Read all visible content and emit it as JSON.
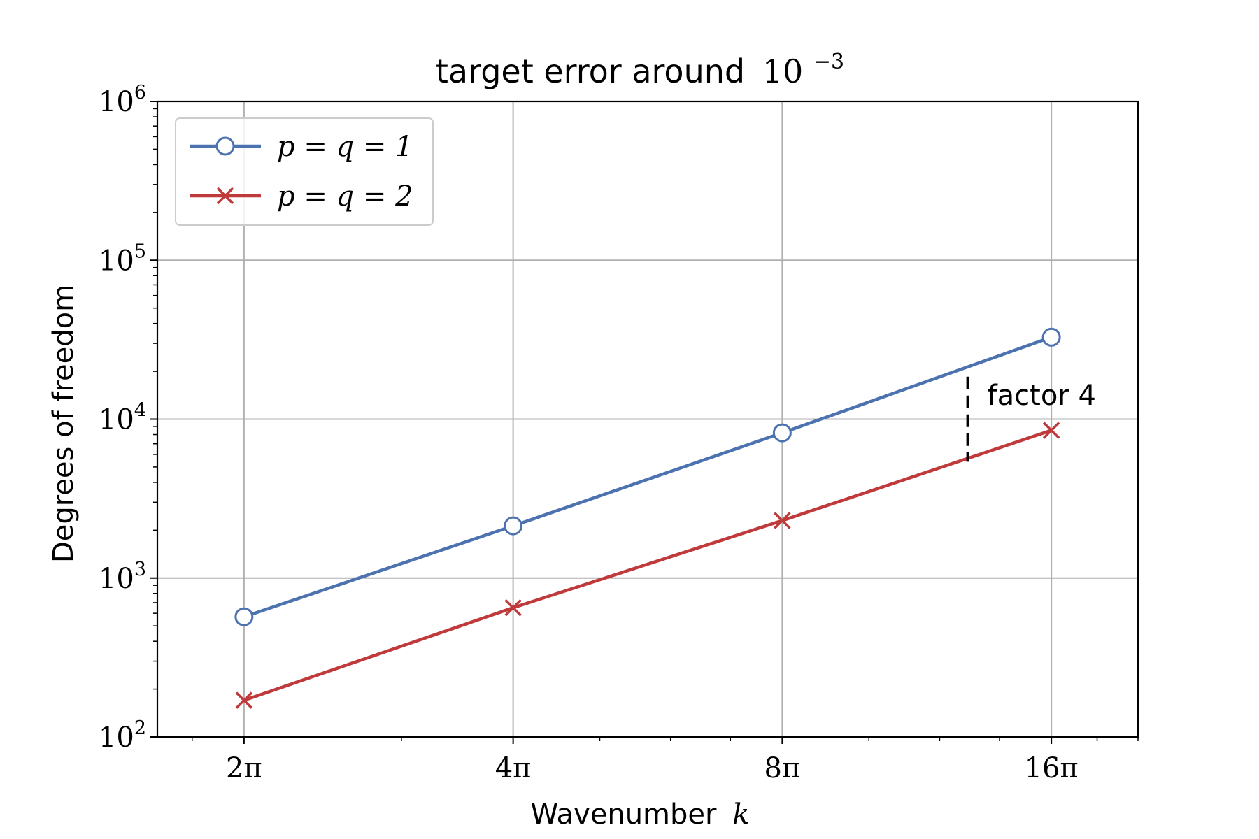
{
  "chart_data": {
    "type": "line",
    "title": "target error around",
    "title_math_base": "10",
    "title_math_exp": "−3",
    "xlabel": "Wavenumber",
    "xlabel_var": "k",
    "ylabel": "Degrees of freedom",
    "x_scale": "log2",
    "y_scale": "log10",
    "x": [
      2,
      4,
      8,
      16
    ],
    "x_tick_labels": [
      "2π",
      "4π",
      "8π",
      "16π"
    ],
    "x_unit": "π",
    "xlim": [
      1.6,
      20.0
    ],
    "ylim": [
      100,
      1000000
    ],
    "y_ticks": [
      {
        "value": 100,
        "base": "10",
        "exp": "2"
      },
      {
        "value": 1000,
        "base": "10",
        "exp": "3"
      },
      {
        "value": 10000,
        "base": "10",
        "exp": "4"
      },
      {
        "value": 100000,
        "base": "10",
        "exp": "5"
      },
      {
        "value": 1000000,
        "base": "10",
        "exp": "6"
      }
    ],
    "grid": true,
    "legend_position": "top-left",
    "series": [
      {
        "name": "p = q = 1",
        "marker": "circle",
        "color": "#4C72B0",
        "values": [
          570,
          2130,
          8200,
          32800
        ]
      },
      {
        "name": "p = q = 2",
        "marker": "x",
        "color": "#C0393B",
        "values": [
          170,
          650,
          2300,
          8500
        ]
      }
    ],
    "annotation": {
      "text": "factor 4",
      "x": 12.9,
      "y_top": 18500,
      "y_bottom": 5400
    }
  }
}
